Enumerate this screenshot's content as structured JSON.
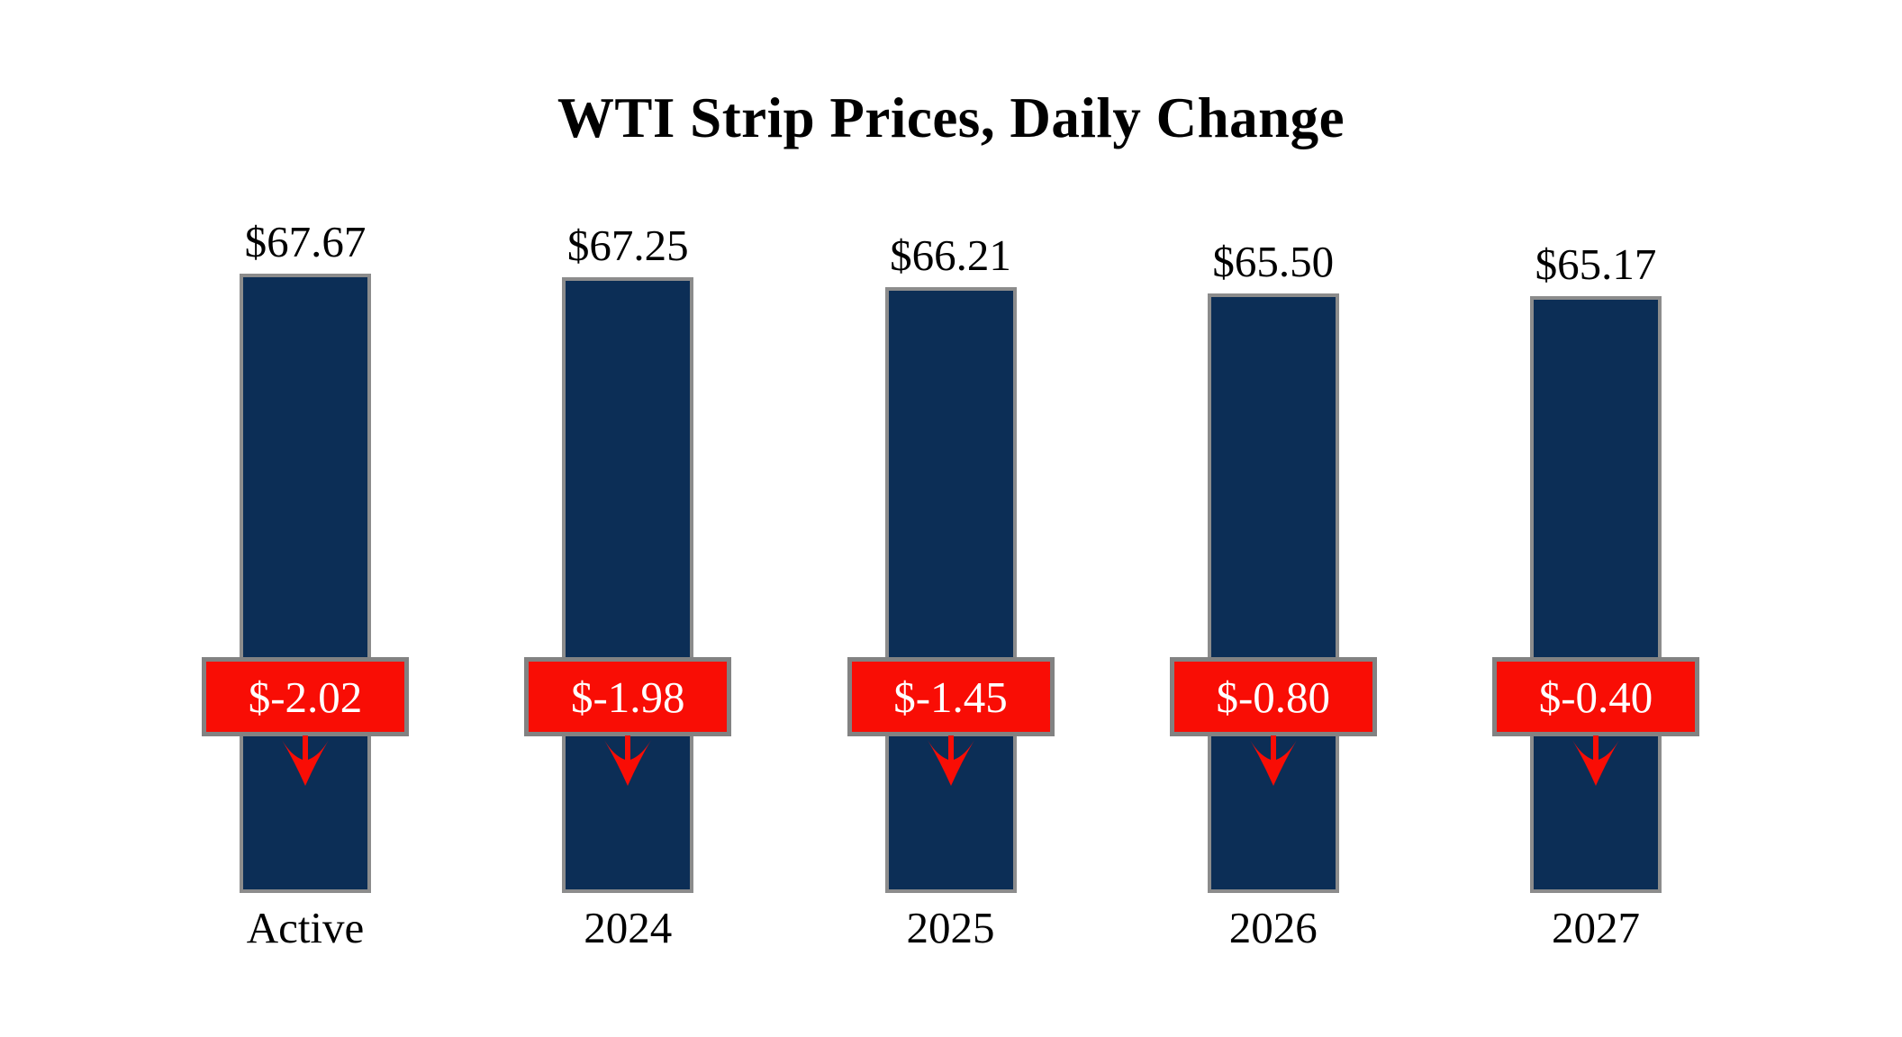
{
  "chart_data": {
    "type": "bar",
    "title": "WTI Strip Prices, Daily Change",
    "categories": [
      "Active",
      "2024",
      "2025",
      "2026",
      "2027"
    ],
    "series": [
      {
        "name": "strip_price",
        "values": [
          67.67,
          67.25,
          66.21,
          65.5,
          65.17
        ],
        "labels": [
          "$67.67",
          "$67.25",
          "$66.21",
          "$65.50",
          "$65.17"
        ]
      },
      {
        "name": "daily_change",
        "values": [
          -2.02,
          -1.98,
          -1.45,
          -0.8,
          -0.4
        ],
        "labels": [
          "$-2.02",
          "$-1.98",
          "$-1.45",
          "$-0.80",
          "$-0.40"
        ]
      }
    ],
    "ylim": [
      0,
      70
    ],
    "grid": false,
    "legend": "none",
    "axis_lines": "none",
    "colors": {
      "bar_fill": "#0c2e56",
      "bar_border": "#8c8c8c",
      "change_box_fill": "#f90d05",
      "change_box_border": "#828282",
      "change_text": "#ffffff",
      "label_text": "#000000",
      "arrow": "#f90d05",
      "background": "#ffffff"
    }
  }
}
